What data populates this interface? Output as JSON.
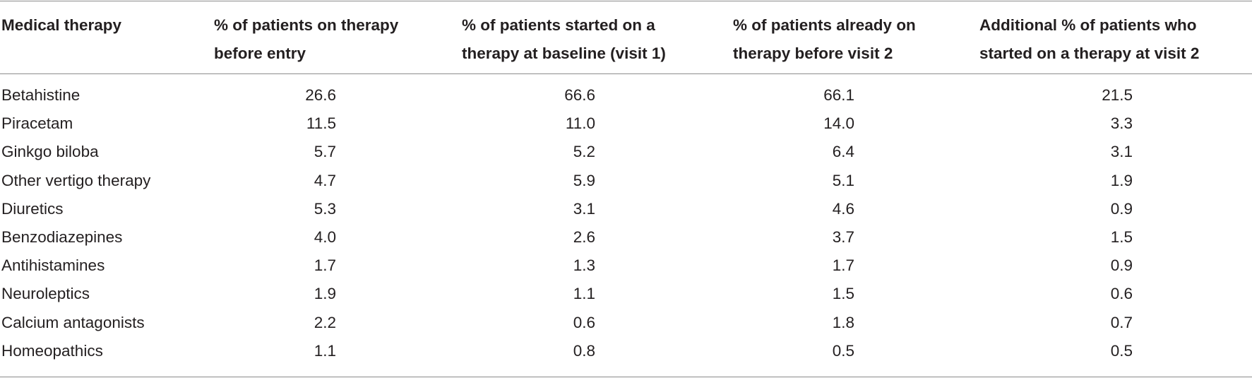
{
  "table": {
    "headers": [
      "Medical therapy",
      "% of patients on therapy before entry",
      "% of patients started on a therapy at baseline (visit 1)",
      "% of patients already on therapy before visit 2",
      "Additional % of patients who started on a therapy at visit 2"
    ],
    "rows": [
      [
        "Betahistine",
        "26.6",
        "66.6",
        "66.1",
        "21.5"
      ],
      [
        "Piracetam",
        "11.5",
        "11.0",
        "14.0",
        "3.3"
      ],
      [
        "Ginkgo biloba",
        "5.7",
        "5.2",
        "6.4",
        "3.1"
      ],
      [
        "Other vertigo therapy",
        "4.7",
        "5.9",
        "5.1",
        "1.9"
      ],
      [
        "Diuretics",
        "5.3",
        "3.1",
        "4.6",
        "0.9"
      ],
      [
        "Benzodiazepines",
        "4.0",
        "2.6",
        "3.7",
        "1.5"
      ],
      [
        "Antihistamines",
        "1.7",
        "1.3",
        "1.7",
        "0.9"
      ],
      [
        "Neuroleptics",
        "1.9",
        "1.1",
        "1.5",
        "0.6"
      ],
      [
        "Calcium antagonists",
        "2.2",
        "0.6",
        "1.8",
        "0.7"
      ],
      [
        "Homeopathics",
        "1.1",
        "0.8",
        "0.5",
        "0.5"
      ]
    ]
  }
}
